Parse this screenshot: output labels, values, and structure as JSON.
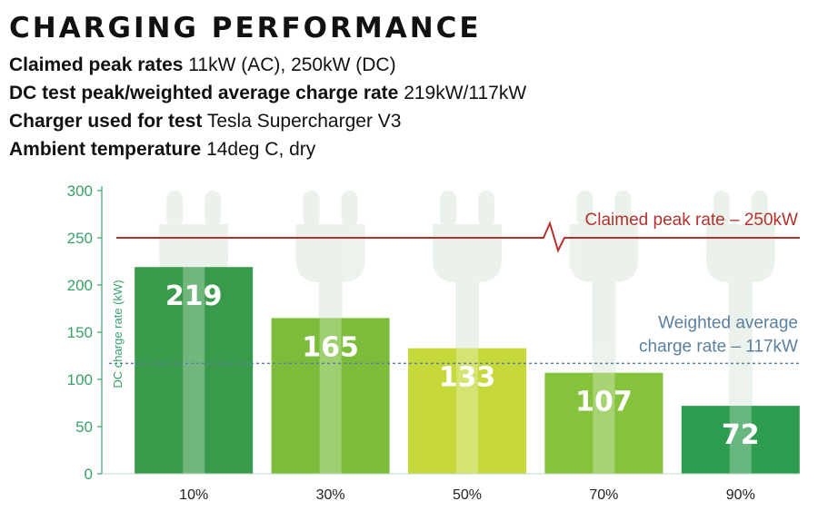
{
  "header": {
    "title": "CHARGING PERFORMANCE",
    "specs": [
      {
        "key": "Claimed peak rates",
        "value": "11kW (AC), 250kW (DC)"
      },
      {
        "key": "DC test peak/weighted average charge rate",
        "value": "219kW/117kW"
      },
      {
        "key": "Charger used for test",
        "value": "Tesla Supercharger V3"
      },
      {
        "key": "Ambient temperature",
        "value": "14deg C, dry"
      }
    ]
  },
  "chart_data": {
    "type": "bar",
    "ylabel": "DC charge rate (kW)",
    "xlabel": "",
    "ylim": [
      0,
      300
    ],
    "yticks": [
      "300",
      "250",
      "200",
      "150",
      "100",
      "50",
      "0"
    ],
    "categories": [
      "10%",
      "30%",
      "50%",
      "70%",
      "90%"
    ],
    "values": [
      219,
      165,
      133,
      107,
      72
    ],
    "value_labels": [
      "219",
      "165",
      "133",
      "107",
      "72"
    ],
    "bar_colors": [
      "#3a9a4c",
      "#7bbd3a",
      "#c6d83a",
      "#86c33c",
      "#2e9c4f"
    ],
    "grid": false,
    "reference_lines": [
      {
        "label": "Claimed peak rate – 250kW",
        "value": 250,
        "color": "#b3322c",
        "style": "solid"
      },
      {
        "label_lines": [
          "Weighted average",
          "charge rate – 117kW"
        ],
        "value": 117,
        "color": "#5b7f9e",
        "style": "dashed"
      }
    ],
    "axis_color": "#3aa06a"
  }
}
